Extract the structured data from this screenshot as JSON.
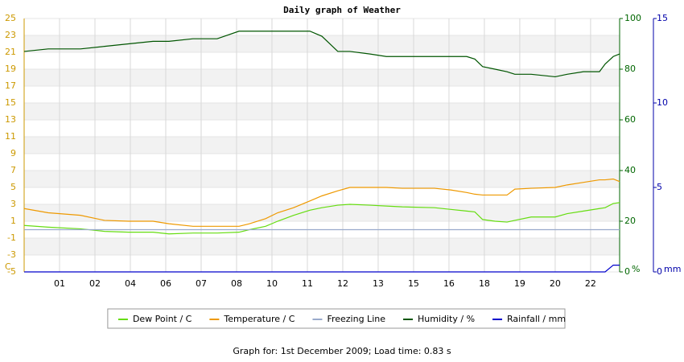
{
  "chart_data": {
    "type": "line",
    "title": "Daily graph of Weather",
    "footer": "Graph for: 1st December 2009; Load time: 0.83 s",
    "y_unit": "C",
    "y2_unit": "%",
    "y3_unit": "mm",
    "x": [
      0,
      0.68,
      1.59,
      2.27,
      2.95,
      3.64,
      4.09,
      4.77,
      5.45,
      6.07,
      6.36,
      6.82,
      7.16,
      7.61,
      8.07,
      8.41,
      8.86,
      9.2,
      9.77,
      10.23,
      10.68,
      11.59,
      12.05,
      12.5,
      12.73,
      12.95,
      13.3,
      13.64,
      13.86,
      14.32,
      15,
      15.34,
      15.8,
      16.25,
      16.41,
      16.64,
      16.82
    ],
    "xlim": [
      0,
      16.82
    ],
    "xticks": [
      {
        "value": 1,
        "label": "01"
      },
      {
        "value": 2,
        "label": "02"
      },
      {
        "value": 3,
        "label": "04"
      },
      {
        "value": 4,
        "label": "06"
      },
      {
        "value": 5,
        "label": "07"
      },
      {
        "value": 6,
        "label": "08"
      },
      {
        "value": 7,
        "label": "10"
      },
      {
        "value": 8,
        "label": "11"
      },
      {
        "value": 9,
        "label": "12"
      },
      {
        "value": 10,
        "label": "13"
      },
      {
        "value": 11,
        "label": "15"
      },
      {
        "value": 12,
        "label": "16"
      },
      {
        "value": 13,
        "label": "18"
      },
      {
        "value": 14,
        "label": "19"
      },
      {
        "value": 15,
        "label": "20"
      },
      {
        "value": 16,
        "label": "22"
      }
    ],
    "ylim": [
      -5,
      25
    ],
    "yticks": [
      -5,
      -3,
      -1,
      1,
      3,
      5,
      7,
      9,
      11,
      13,
      15,
      17,
      19,
      21,
      23,
      25
    ],
    "y2lim": [
      0,
      100
    ],
    "y2ticks": [
      0,
      20,
      40,
      60,
      80,
      100
    ],
    "y3lim": [
      0,
      15
    ],
    "y3ticks": [
      0,
      5,
      10,
      15
    ],
    "grid": true,
    "axis_colors": {
      "y": "#cc9900",
      "y2": "#006600",
      "y3": "#0000aa"
    },
    "series": [
      {
        "name": "Dew Point / C",
        "color": "#66dd11",
        "axis": "y",
        "values": [
          0.5,
          0.3,
          0.1,
          -0.2,
          -0.3,
          -0.3,
          -0.5,
          -0.4,
          -0.4,
          -0.3,
          0.0,
          0.4,
          1.0,
          1.7,
          2.3,
          2.6,
          2.9,
          3.0,
          2.9,
          2.8,
          2.7,
          2.6,
          2.4,
          2.2,
          2.1,
          1.2,
          1.0,
          0.9,
          1.1,
          1.5,
          1.5,
          1.9,
          2.2,
          2.5,
          2.6,
          3.1,
          3.2
        ]
      },
      {
        "name": "Temperature / C",
        "color": "#ee9900",
        "axis": "y",
        "values": [
          2.5,
          2.0,
          1.7,
          1.1,
          1.0,
          1.0,
          0.7,
          0.4,
          0.4,
          0.4,
          0.7,
          1.3,
          2.0,
          2.6,
          3.4,
          4.0,
          4.6,
          5.0,
          5.0,
          5.0,
          4.9,
          4.9,
          4.7,
          4.4,
          4.2,
          4.1,
          4.1,
          4.1,
          4.8,
          4.9,
          5.0,
          5.3,
          5.6,
          5.9,
          5.9,
          6.0,
          5.7
        ]
      },
      {
        "name": "Freezing Line",
        "color": "#99aacc",
        "axis": "y",
        "values": [
          0,
          0,
          0,
          0,
          0,
          0,
          0,
          0,
          0,
          0,
          0,
          0,
          0,
          0,
          0,
          0,
          0,
          0,
          0,
          0,
          0,
          0,
          0,
          0,
          0,
          0,
          0,
          0,
          0,
          0,
          0,
          0,
          0,
          0,
          0,
          0,
          0
        ]
      },
      {
        "name": "Humidity / %",
        "color": "#005500",
        "axis": "y2",
        "values": [
          87,
          88,
          88,
          89,
          90,
          91,
          91,
          92,
          92,
          95,
          95,
          95,
          95,
          95,
          95,
          93,
          87,
          87,
          86,
          85,
          85,
          85,
          85,
          85,
          84,
          81,
          80,
          79,
          78,
          78,
          77,
          78,
          79,
          79,
          82,
          85,
          86
        ]
      },
      {
        "name": "Rainfall / mm",
        "color": "#0000cc",
        "axis": "y3",
        "values": [
          0,
          0,
          0,
          0,
          0,
          0,
          0,
          0,
          0,
          0,
          0,
          0,
          0,
          0,
          0,
          0,
          0,
          0,
          0,
          0,
          0,
          0,
          0,
          0,
          0,
          0,
          0,
          0,
          0,
          0,
          0,
          0,
          0,
          0,
          0,
          0.4,
          0.4
        ]
      }
    ]
  }
}
